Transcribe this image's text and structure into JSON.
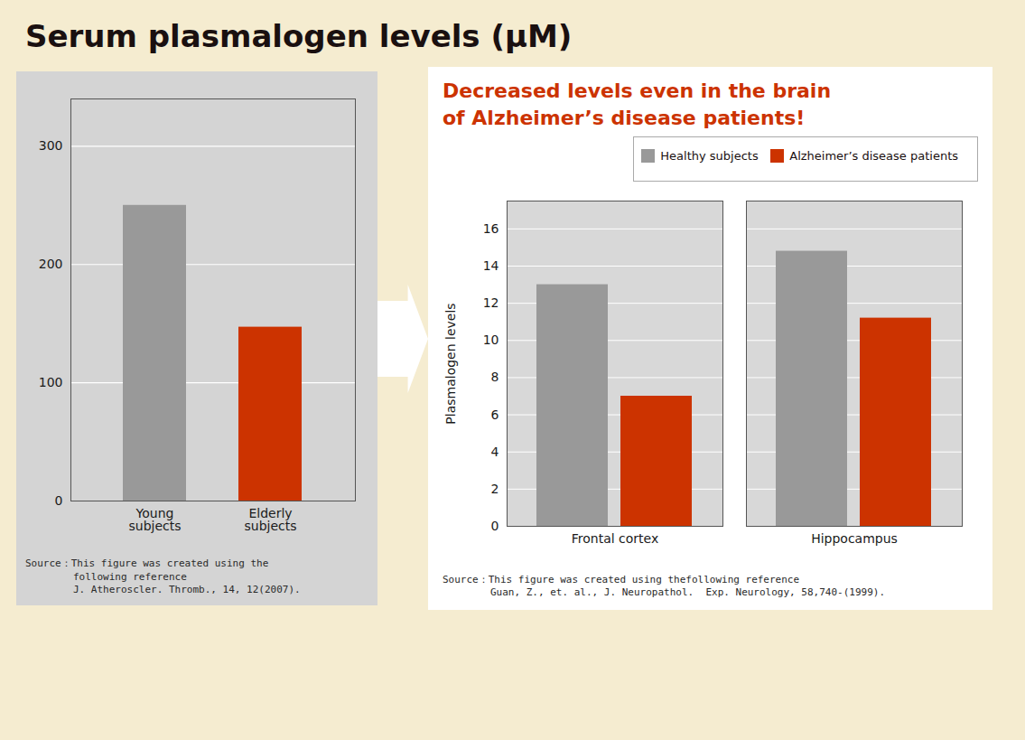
{
  "title": "Serum plasmalogen levels (μM)",
  "chart_data": [
    {
      "type": "bar",
      "categories": [
        "Young\nsubjects",
        "Elderly\nsubjects"
      ],
      "values": [
        250,
        147
      ],
      "colors": [
        "#999999",
        "#cc3300"
      ],
      "ylim": [
        0,
        340
      ],
      "yticks": [
        0,
        100,
        200,
        300
      ],
      "grid": true,
      "annotations": [
        "Source：This figure was created using the\n        following reference\n        J. Atheroscler. Thromb., 14, 12(2007)."
      ]
    },
    {
      "type": "bar",
      "subtitle": "Decreased levels even in the brain\nof Alzheimer’s disease patients!",
      "categories": [
        "Frontal cortex",
        "Hippocampus"
      ],
      "series": [
        {
          "name": "Healthy subjects",
          "color": "#999999",
          "values": [
            13.0,
            14.8
          ]
        },
        {
          "name": "Alzheimer’s disease patients",
          "color": "#cc3300",
          "values": [
            7.0,
            11.2
          ]
        }
      ],
      "ylabel": "Plasmalogen levels",
      "ylim": [
        0,
        17.5
      ],
      "yticks": [
        0,
        2,
        4,
        6,
        8,
        10,
        12,
        14,
        16
      ],
      "grid": true,
      "legend": "upper-right",
      "annotations": [
        "Source：This figure was created using thefollowing reference\n        Guan, Z., et. al., J. Neuropathol.  Exp. Neurology, 58,740-(1999)."
      ]
    }
  ]
}
